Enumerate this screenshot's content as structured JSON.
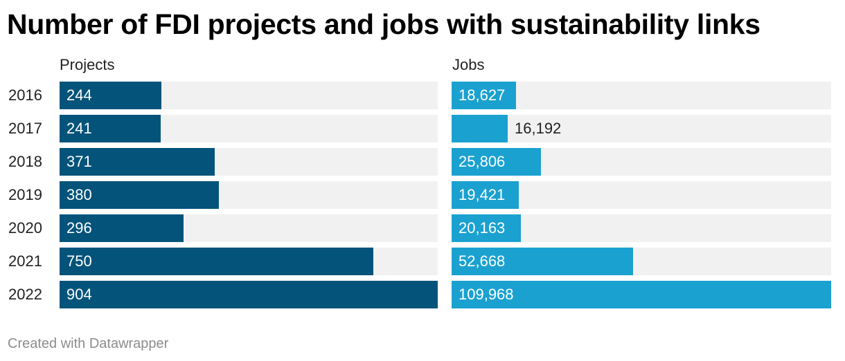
{
  "title": "Number of FDI projects and jobs with sustainability links",
  "footer": "Created with Datawrapper",
  "colors": {
    "projects": "#03537a",
    "jobs": "#1aa1d0",
    "track": "#f1f1f1"
  },
  "chart_data": [
    {
      "type": "bar",
      "orientation": "horizontal",
      "title": "Projects",
      "categories": [
        "2016",
        "2017",
        "2018",
        "2019",
        "2020",
        "2021",
        "2022"
      ],
      "values": [
        244,
        241,
        371,
        380,
        296,
        750,
        904
      ],
      "labels": [
        "244",
        "241",
        "371",
        "380",
        "296",
        "750",
        "904"
      ],
      "xlim": [
        0,
        904
      ],
      "color": "#03537a"
    },
    {
      "type": "bar",
      "orientation": "horizontal",
      "title": "Jobs",
      "categories": [
        "2016",
        "2017",
        "2018",
        "2019",
        "2020",
        "2021",
        "2022"
      ],
      "values": [
        18627,
        16192,
        25806,
        19421,
        20163,
        52668,
        109968
      ],
      "labels": [
        "18,627",
        "16,192",
        "25,806",
        "19,421",
        "20,163",
        "52,668",
        "109,968"
      ],
      "xlim": [
        0,
        109968
      ],
      "color": "#1aa1d0"
    }
  ]
}
